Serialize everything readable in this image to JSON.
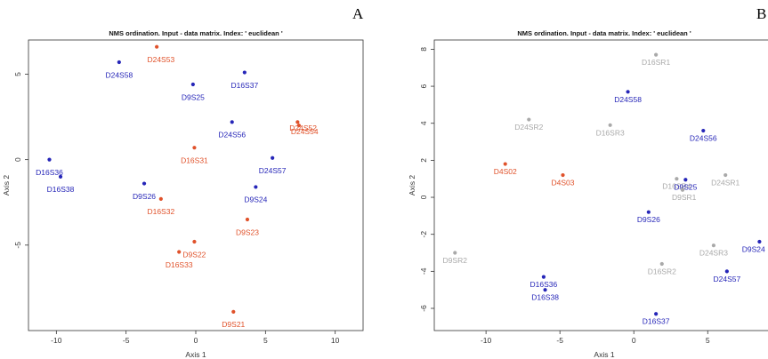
{
  "panels": [
    {
      "label": "A",
      "title": "NMS ordination. Input - data matrix. Index: ' euclidean '",
      "xlabel": "Axis 1",
      "ylabel": "Axis 2",
      "xlim": [
        -12,
        12
      ],
      "ylim": [
        -10,
        7
      ],
      "xticks": [
        -10,
        -5,
        0,
        5,
        10
      ],
      "yticks": [
        -5,
        0,
        5
      ],
      "points": [
        {
          "label": "D24S53",
          "x": -2.8,
          "y": 6.6,
          "group": "D24S",
          "dx": 0.3,
          "dy": -0.9
        },
        {
          "label": "D24S58",
          "x": -5.5,
          "y": 5.7,
          "group": "D9S",
          "dx": 0,
          "dy": -0.9
        },
        {
          "label": "D16S37",
          "x": 3.5,
          "y": 5.1,
          "group": "D9S",
          "dx": 0,
          "dy": -0.9
        },
        {
          "label": "D9S25",
          "x": -0.2,
          "y": 4.4,
          "group": "D9S",
          "dx": 0,
          "dy": -0.9
        },
        {
          "label": "D24S52",
          "x": 7.3,
          "y": 2.2,
          "group": "D24S",
          "dx": 0.4,
          "dy": -0.5
        },
        {
          "label": "D24S54",
          "x": 7.4,
          "y": 2.0,
          "group": "D24S",
          "dx": 0.4,
          "dy": -0.5
        },
        {
          "label": "D24S56",
          "x": 2.6,
          "y": 2.2,
          "group": "D9S",
          "dx": 0,
          "dy": -0.9
        },
        {
          "label": "D16S31",
          "x": -0.1,
          "y": 0.7,
          "group": "D24S",
          "dx": 0,
          "dy": -0.9
        },
        {
          "label": "D16S36",
          "x": -10.5,
          "y": 0.0,
          "group": "D9S",
          "dx": 0,
          "dy": -0.9
        },
        {
          "label": "D24S57",
          "x": 5.5,
          "y": 0.1,
          "group": "D9S",
          "dx": 0,
          "dy": -0.9
        },
        {
          "label": "D16S38",
          "x": -9.7,
          "y": -1.0,
          "group": "D9S",
          "dx": 0,
          "dy": -0.9
        },
        {
          "label": "D9S26",
          "x": -3.7,
          "y": -1.4,
          "group": "D9S",
          "dx": 0,
          "dy": -0.9
        },
        {
          "label": "D9S24",
          "x": 4.3,
          "y": -1.6,
          "group": "D9S",
          "dx": 0,
          "dy": -0.9
        },
        {
          "label": "D16S32",
          "x": -2.5,
          "y": -2.3,
          "group": "D24S",
          "dx": 0,
          "dy": -0.9
        },
        {
          "label": "D9S23",
          "x": 3.7,
          "y": -3.5,
          "group": "D24S",
          "dx": 0,
          "dy": -0.9
        },
        {
          "label": "D9S22",
          "x": -0.1,
          "y": -4.8,
          "group": "D24S",
          "dx": 0,
          "dy": -0.9
        },
        {
          "label": "D16S33",
          "x": -1.2,
          "y": -5.4,
          "group": "D24S",
          "dx": 0,
          "dy": -0.9
        },
        {
          "label": "D9S21",
          "x": 2.7,
          "y": -8.9,
          "group": "D24S",
          "dx": 0,
          "dy": -0.9
        }
      ]
    },
    {
      "label": "B",
      "title": "NMS ordination. Input - data matrix. Index: ' euclidean '",
      "xlabel": "Axis 1",
      "ylabel": "Axis 2",
      "xlim": [
        -13.5,
        9.5
      ],
      "ylim": [
        -7.2,
        8.5
      ],
      "xticks": [
        -10,
        -5,
        0,
        5
      ],
      "yticks": [
        -6,
        -4,
        -2,
        0,
        2,
        4,
        6,
        8
      ],
      "points": [
        {
          "label": "D16SR1",
          "x": 1.5,
          "y": 7.7,
          "group": "SR",
          "dx": 0,
          "dy": -0.55
        },
        {
          "label": "D24SR2",
          "x": -7.1,
          "y": 4.2,
          "group": "SR",
          "dx": 0,
          "dy": -0.55
        },
        {
          "label": "D24S58",
          "x": -0.4,
          "y": 5.7,
          "group": "D9S",
          "dx": 0,
          "dy": -0.55
        },
        {
          "label": "D16SR3",
          "x": -1.6,
          "y": 3.9,
          "group": "SR",
          "dx": 0,
          "dy": -0.55
        },
        {
          "label": "D24S56",
          "x": 4.7,
          "y": 3.6,
          "group": "D9S",
          "dx": 0,
          "dy": -0.55
        },
        {
          "label": "D4S02",
          "x": -8.7,
          "y": 1.8,
          "group": "D24S",
          "dx": 0,
          "dy": -0.55
        },
        {
          "label": "D4S03",
          "x": -4.8,
          "y": 1.2,
          "group": "D24S",
          "dx": 0,
          "dy": -0.55
        },
        {
          "label": "D24SR1",
          "x": 6.2,
          "y": 1.2,
          "group": "SR",
          "dx": 0,
          "dy": -0.55
        },
        {
          "label": "D16SR4",
          "x": 2.9,
          "y": 1.0,
          "group": "SR",
          "dx": 0,
          "dy": -0.55
        },
        {
          "label": "D9S25",
          "x": 3.5,
          "y": 0.95,
          "group": "D9S",
          "dx": 0,
          "dy": -0.55
        },
        {
          "label": "D9SR1",
          "x": 3.3,
          "y": 0.4,
          "group": "SR",
          "dx": 0.1,
          "dy": -0.55
        },
        {
          "label": "D9S26",
          "x": 1.0,
          "y": -0.8,
          "group": "D9S",
          "dx": 0,
          "dy": -0.55
        },
        {
          "label": "D16SR2",
          "x": 1.9,
          "y": -3.6,
          "group": "SR",
          "dx": 0,
          "dy": -0.55
        },
        {
          "label": "D24SR3",
          "x": 5.4,
          "y": -2.6,
          "group": "SR",
          "dx": 0,
          "dy": -0.55
        },
        {
          "label": "D9S24",
          "x": 8.5,
          "y": -2.4,
          "group": "D9S",
          "dx": -0.4,
          "dy": -0.55
        },
        {
          "label": "D9SR2",
          "x": -12.1,
          "y": -3.0,
          "group": "SR",
          "dx": 0,
          "dy": -0.55
        },
        {
          "label": "D24S57",
          "x": 6.3,
          "y": -4.0,
          "group": "D9S",
          "dx": 0,
          "dy": -0.55
        },
        {
          "label": "D16S36",
          "x": -6.1,
          "y": -4.3,
          "group": "D9S",
          "dx": 0,
          "dy": -0.55
        },
        {
          "label": "D16S38",
          "x": -6.0,
          "y": -5.0,
          "group": "D9S",
          "dx": 0,
          "dy": -0.55
        },
        {
          "label": "D16S37",
          "x": 1.5,
          "y": -6.3,
          "group": "D9S",
          "dx": 0,
          "dy": -0.55
        }
      ]
    }
  ],
  "colors": {
    "D24S": "#e0522b",
    "D9S": "#2626b8",
    "SR": "#a9a9a9",
    "axis": "#333333"
  }
}
